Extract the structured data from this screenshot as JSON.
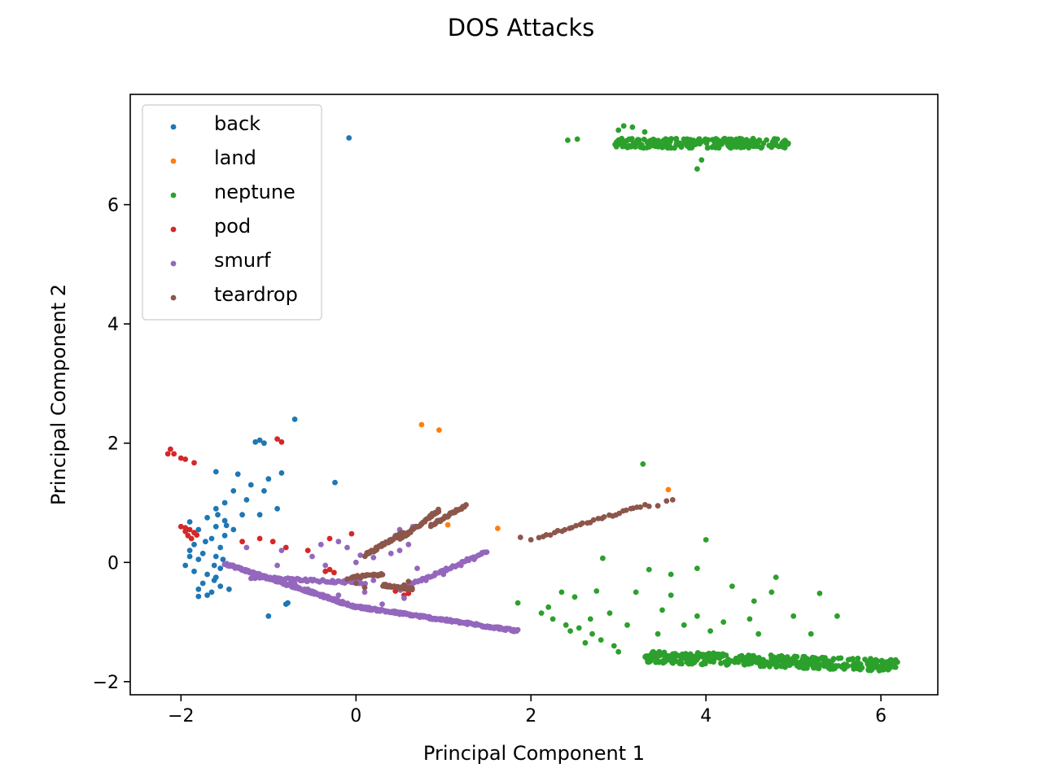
{
  "chart_data": {
    "type": "scatter",
    "title": "DOS Attacks",
    "xlabel": "Principal Component 1",
    "ylabel": "Principal Component 2",
    "xlim": [
      -2.58,
      6.65
    ],
    "ylim": [
      -2.22,
      7.85
    ],
    "xticks": [
      -2,
      0,
      2,
      4,
      6
    ],
    "yticks": [
      -2,
      0,
      2,
      4,
      6
    ],
    "x_tick_labels": [
      "−2",
      "0",
      "2",
      "4",
      "6"
    ],
    "y_tick_labels": [
      "−2",
      "0",
      "2",
      "4",
      "6"
    ],
    "grid": false,
    "legend_position": "top-left",
    "series": [
      {
        "name": "back",
        "color": "#1f77b4",
        "points": [
          [
            -0.08,
            7.12
          ],
          [
            -0.7,
            2.4
          ],
          [
            -1.1,
            2.05
          ],
          [
            -1.05,
            2.0
          ],
          [
            -1.15,
            2.02
          ],
          [
            -0.24,
            1.34
          ],
          [
            -1.6,
            1.52
          ],
          [
            -1.35,
            1.48
          ],
          [
            -1.0,
            1.4
          ],
          [
            -0.85,
            1.5
          ],
          [
            -1.2,
            1.3
          ],
          [
            -1.05,
            1.2
          ],
          [
            -1.4,
            1.2
          ],
          [
            -1.5,
            1.0
          ],
          [
            -1.6,
            0.9
          ],
          [
            -1.1,
            0.8
          ],
          [
            -1.3,
            0.8
          ],
          [
            -0.9,
            0.9
          ],
          [
            -1.5,
            0.7
          ],
          [
            -1.7,
            0.75
          ],
          [
            -1.9,
            0.68
          ],
          [
            -1.8,
            0.55
          ],
          [
            -1.6,
            0.6
          ],
          [
            -1.4,
            0.55
          ],
          [
            -1.5,
            0.45
          ],
          [
            -1.65,
            0.4
          ],
          [
            -1.85,
            0.3
          ],
          [
            -1.9,
            0.2
          ],
          [
            -1.75,
            0.15
          ],
          [
            -1.55,
            0.25
          ],
          [
            -1.6,
            0.1
          ],
          [
            -1.8,
            0.05
          ],
          [
            -1.95,
            -0.05
          ],
          [
            -1.85,
            -0.15
          ],
          [
            -1.7,
            -0.2
          ],
          [
            -1.55,
            -0.1
          ],
          [
            -1.6,
            -0.25
          ],
          [
            -1.75,
            -0.35
          ],
          [
            -1.8,
            -0.45
          ],
          [
            -1.65,
            -0.5
          ],
          [
            -1.55,
            -0.4
          ],
          [
            -1.7,
            -0.55
          ],
          [
            -1.8,
            -0.57
          ],
          [
            -1.62,
            -0.3
          ],
          [
            -1.52,
            0.05
          ],
          [
            -1.45,
            -0.45
          ],
          [
            -1.0,
            -0.9
          ],
          [
            -0.8,
            -0.7
          ],
          [
            -0.78,
            -0.68
          ],
          [
            -1.9,
            0.1
          ],
          [
            -1.72,
            0.35
          ],
          [
            -1.58,
            0.8
          ],
          [
            -1.25,
            1.05
          ],
          [
            -1.48,
            0.62
          ],
          [
            -1.62,
            -0.05
          ]
        ]
      },
      {
        "name": "land",
        "color": "#ff7f0e",
        "points": [
          [
            0.75,
            2.31
          ],
          [
            0.95,
            2.22
          ],
          [
            3.57,
            1.22
          ],
          [
            1.62,
            0.57
          ],
          [
            1.05,
            0.63
          ]
        ]
      },
      {
        "name": "neptune",
        "color": "#2ca02c",
        "clusters": [
          {
            "x_range": [
              2.95,
              4.95
            ],
            "y_center": 7.03,
            "y_spread": 0.08,
            "count": 260
          },
          {
            "x_range": [
              3.3,
              6.2
            ],
            "y_center": -1.58,
            "y_spread": 0.1,
            "count": 420
          }
        ],
        "points": [
          [
            2.42,
            7.08
          ],
          [
            2.53,
            7.1
          ],
          [
            3.06,
            7.32
          ],
          [
            3.16,
            7.3
          ],
          [
            3.0,
            7.25
          ],
          [
            3.3,
            7.22
          ],
          [
            3.9,
            6.6
          ],
          [
            3.95,
            6.75
          ],
          [
            3.28,
            1.65
          ],
          [
            4.0,
            0.38
          ],
          [
            2.82,
            0.07
          ],
          [
            3.35,
            -0.12
          ],
          [
            3.9,
            -0.1
          ],
          [
            4.3,
            -0.4
          ],
          [
            4.8,
            -0.25
          ],
          [
            3.6,
            -0.2
          ],
          [
            5.3,
            -0.52
          ],
          [
            4.75,
            -0.5
          ],
          [
            2.35,
            -0.5
          ],
          [
            2.5,
            -0.58
          ],
          [
            2.75,
            -0.48
          ],
          [
            1.85,
            -0.68
          ],
          [
            2.12,
            -0.85
          ],
          [
            2.25,
            -0.95
          ],
          [
            2.4,
            -1.05
          ],
          [
            2.55,
            -1.1
          ],
          [
            2.7,
            -1.2
          ],
          [
            2.8,
            -1.3
          ],
          [
            2.62,
            -1.35
          ],
          [
            2.95,
            -1.4
          ],
          [
            3.1,
            -1.05
          ],
          [
            3.5,
            -0.8
          ],
          [
            3.9,
            -0.9
          ],
          [
            4.2,
            -1.0
          ],
          [
            4.5,
            -0.95
          ],
          [
            5.0,
            -0.9
          ],
          [
            5.5,
            -0.9
          ],
          [
            3.2,
            -0.5
          ],
          [
            2.9,
            -0.85
          ],
          [
            3.45,
            -1.2
          ],
          [
            3.75,
            -1.05
          ],
          [
            4.05,
            -1.15
          ],
          [
            4.6,
            -1.2
          ],
          [
            5.2,
            -1.2
          ],
          [
            2.68,
            -0.95
          ],
          [
            2.45,
            -1.15
          ],
          [
            2.2,
            -0.75
          ],
          [
            3.6,
            -0.55
          ],
          [
            4.55,
            -0.65
          ],
          [
            3.0,
            -1.5
          ]
        ]
      },
      {
        "name": "pod",
        "color": "#d62728",
        "points": [
          [
            -2.12,
            1.9
          ],
          [
            -2.08,
            1.82
          ],
          [
            -2.0,
            1.75
          ],
          [
            -1.95,
            1.73
          ],
          [
            -1.85,
            1.67
          ],
          [
            -2.15,
            1.82
          ],
          [
            -0.9,
            2.07
          ],
          [
            -0.85,
            2.02
          ],
          [
            -1.95,
            0.58
          ],
          [
            -1.9,
            0.55
          ],
          [
            -1.85,
            0.5
          ],
          [
            -1.92,
            0.45
          ],
          [
            -2.0,
            0.6
          ],
          [
            -1.88,
            0.4
          ],
          [
            -1.82,
            0.46
          ],
          [
            -1.95,
            0.52
          ],
          [
            -1.3,
            0.35
          ],
          [
            -1.1,
            0.4
          ],
          [
            -0.95,
            0.35
          ],
          [
            -0.8,
            0.25
          ],
          [
            -0.55,
            0.2
          ],
          [
            -0.3,
            0.4
          ],
          [
            -0.05,
            0.48
          ],
          [
            -0.35,
            -0.15
          ],
          [
            -0.25,
            -0.17
          ],
          [
            -0.3,
            -0.12
          ],
          [
            0.45,
            -0.48
          ],
          [
            0.6,
            -0.52
          ],
          [
            0.55,
            -0.55
          ]
        ]
      },
      {
        "name": "smurf",
        "color": "#9467bd",
        "lines": [
          {
            "from": [
              -1.5,
              -0.02
            ],
            "to": [
              -0.1,
              -0.7
            ],
            "count": 160
          },
          {
            "from": [
              -0.1,
              -0.72
            ],
            "to": [
              1.85,
              -1.15
            ],
            "count": 200
          },
          {
            "from": [
              -1.2,
              -0.25
            ],
            "to": [
              0.1,
              -0.35
            ],
            "count": 60
          },
          {
            "from": [
              0.5,
              -0.45
            ],
            "to": [
              1.5,
              0.18
            ],
            "count": 55
          }
        ],
        "points": [
          [
            -1.25,
            0.25
          ],
          [
            -0.9,
            -0.05
          ],
          [
            -0.85,
            0.2
          ],
          [
            -0.5,
            0.1
          ],
          [
            -0.4,
            0.3
          ],
          [
            -0.2,
            0.35
          ],
          [
            -0.1,
            0.25
          ],
          [
            0.0,
            0.0
          ],
          [
            0.2,
            0.08
          ],
          [
            0.4,
            0.15
          ],
          [
            0.5,
            0.2
          ],
          [
            0.6,
            0.3
          ],
          [
            0.45,
            0.45
          ],
          [
            0.5,
            0.55
          ],
          [
            0.65,
            0.6
          ],
          [
            0.1,
            -0.5
          ],
          [
            0.3,
            -0.7
          ],
          [
            0.55,
            -0.6
          ],
          [
            0.8,
            -0.3
          ],
          [
            1.0,
            -0.2
          ],
          [
            1.2,
            -0.05
          ],
          [
            1.35,
            0.05
          ],
          [
            -0.7,
            -0.35
          ],
          [
            -0.55,
            -0.45
          ],
          [
            -0.35,
            -0.05
          ],
          [
            -0.2,
            -0.55
          ],
          [
            0.2,
            -0.3
          ],
          [
            0.7,
            -0.1
          ],
          [
            0.3,
            0.3
          ],
          [
            0.05,
            0.12
          ]
        ]
      },
      {
        "name": "teardrop",
        "color": "#8c564b",
        "lines": [
          {
            "from": [
              0.1,
              0.12
            ],
            "to": [
              0.55,
              0.5
            ],
            "count": 40
          },
          {
            "from": [
              0.5,
              0.38
            ],
            "to": [
              0.95,
              0.88
            ],
            "count": 40
          },
          {
            "from": [
              0.85,
              0.62
            ],
            "to": [
              1.25,
              0.95
            ],
            "count": 35
          },
          {
            "from": [
              2.1,
              0.42
            ],
            "to": [
              3.3,
              0.96
            ],
            "count": 30
          },
          {
            "from": [
              -0.05,
              -0.25
            ],
            "to": [
              0.3,
              -0.2
            ],
            "count": 25
          },
          {
            "from": [
              0.3,
              -0.38
            ],
            "to": [
              0.65,
              -0.45
            ],
            "count": 25
          }
        ],
        "points": [
          [
            3.35,
            0.94
          ],
          [
            3.45,
            0.95
          ],
          [
            3.55,
            1.03
          ],
          [
            3.62,
            1.05
          ],
          [
            2.0,
            0.38
          ],
          [
            1.88,
            0.42
          ],
          [
            0.0,
            -0.35
          ],
          [
            0.1,
            -0.42
          ],
          [
            0.55,
            -0.38
          ],
          [
            0.6,
            -0.32
          ],
          [
            -0.1,
            -0.28
          ],
          [
            0.2,
            -0.2
          ]
        ]
      }
    ]
  }
}
